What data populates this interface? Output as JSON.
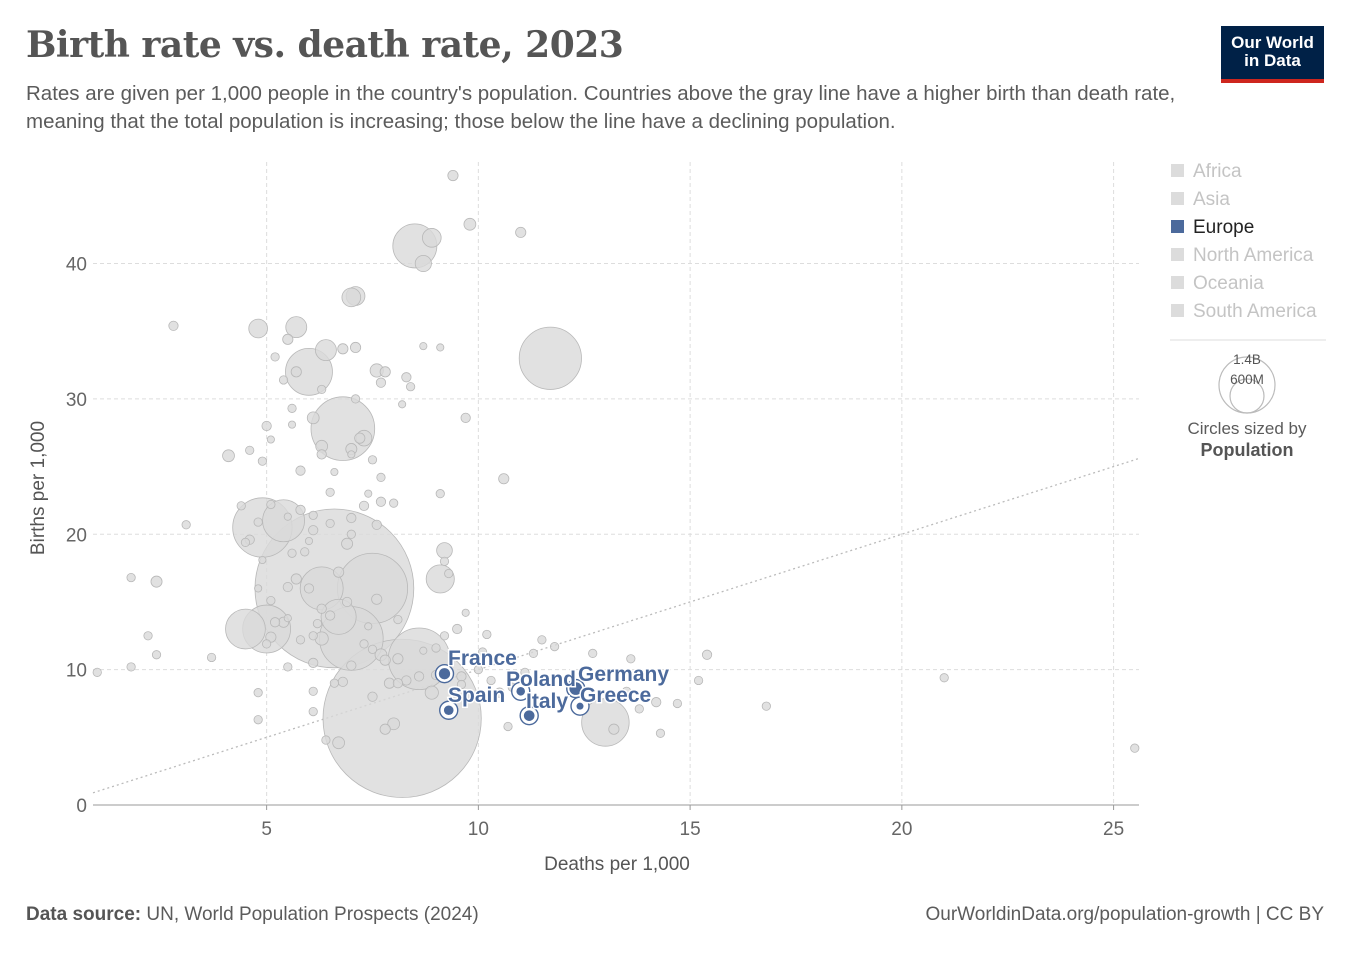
{
  "header": {
    "title": "Birth rate vs. death rate, 2023",
    "subtitle": "Rates are given per 1,000 people in the country's population. Countries above the gray line have a higher birth than death rate, meaning that the total population is increasing; those below the line have a declining population.",
    "logo_line1": "Our World",
    "logo_line2": "in Data"
  },
  "footer": {
    "source_label": "Data source:",
    "source_text": "UN, World Population Prospects (2024)",
    "url": "OurWorldinData.org/population-growth | CC BY"
  },
  "colors": {
    "europe": "#4c6a9c",
    "muted": "#d9d9d9",
    "muted_stroke": "#b8b8b8",
    "grid": "#dddddd",
    "parity_line": "#bbbbbb"
  },
  "chart_data": {
    "type": "scatter",
    "xlabel": "Deaths per 1,000",
    "ylabel": "Births per 1,000",
    "xlim": [
      0.9,
      25.6
    ],
    "ylim": [
      0,
      47.5
    ],
    "x_ticks": [
      5,
      10,
      15,
      20,
      25
    ],
    "y_ticks": [
      0,
      10,
      20,
      30,
      40
    ],
    "grid": true,
    "reference_line": {
      "from": [
        0.9,
        0.9
      ],
      "to": [
        25.6,
        25.6
      ],
      "style": "dotted"
    },
    "legend": {
      "position": "right",
      "entries": [
        {
          "name": "Africa",
          "active": false
        },
        {
          "name": "Asia",
          "active": false
        },
        {
          "name": "Europe",
          "active": true
        },
        {
          "name": "North America",
          "active": false
        },
        {
          "name": "Oceania",
          "active": false
        },
        {
          "name": "South America",
          "active": false
        }
      ]
    },
    "size_legend": {
      "large": "1.4B",
      "small": "600M",
      "caption": "Circles sized by",
      "variable": "Population"
    },
    "highlighted": [
      {
        "name": "France",
        "x": 9.2,
        "y": 9.7,
        "pop": 66
      },
      {
        "name": "Spain",
        "x": 9.3,
        "y": 7.0,
        "pop": 48
      },
      {
        "name": "Poland",
        "x": 11.0,
        "y": 8.4,
        "pop": 38
      },
      {
        "name": "Italy",
        "x": 11.2,
        "y": 6.6,
        "pop": 59
      },
      {
        "name": "Germany",
        "x": 12.3,
        "y": 8.6,
        "pop": 84
      },
      {
        "name": "Greece",
        "x": 12.4,
        "y": 7.3,
        "pop": 10
      }
    ],
    "other_points": [
      [
        6.6,
        16,
        1430
      ],
      [
        8.2,
        6.4,
        1420
      ],
      [
        7.5,
        16,
        280
      ],
      [
        7,
        12.3,
        230
      ],
      [
        6.8,
        27.8,
        230
      ],
      [
        11.7,
        33,
        220
      ],
      [
        8.6,
        10.8,
        215
      ],
      [
        4.9,
        20.5,
        200
      ],
      [
        13.0,
        6.1,
        128
      ],
      [
        6.0,
        32,
        125
      ],
      [
        8.5,
        41.3,
        110
      ],
      [
        5.4,
        21,
        100
      ],
      [
        5.7,
        35.3,
        25
      ],
      [
        6.4,
        33.6,
        25
      ],
      [
        5,
        13,
        130
      ],
      [
        6.3,
        16,
        105
      ],
      [
        4.5,
        13,
        90
      ],
      [
        6.7,
        13.9,
        70
      ],
      [
        4.8,
        35.2,
        20
      ],
      [
        9.1,
        16.7,
        45
      ],
      [
        9.4,
        46.5,
        6
      ],
      [
        9.8,
        42.9,
        8
      ],
      [
        11,
        42.3,
        6
      ],
      [
        8.7,
        40,
        15
      ],
      [
        8.9,
        41.9,
        20
      ],
      [
        7.1,
        37.6,
        20
      ],
      [
        7.0,
        37.5,
        20
      ],
      [
        2.8,
        35.4,
        5
      ],
      [
        5.5,
        34.4,
        6
      ],
      [
        7.1,
        33.8,
        6
      ],
      [
        6.8,
        33.7,
        6
      ],
      [
        5.2,
        33.1,
        4
      ],
      [
        8.7,
        33.9,
        3
      ],
      [
        9.1,
        33.8,
        3
      ],
      [
        5.7,
        32.0,
        6
      ],
      [
        7.6,
        32.1,
        10
      ],
      [
        7.8,
        32,
        6
      ],
      [
        8.3,
        31.6,
        5
      ],
      [
        5.4,
        31.4,
        4
      ],
      [
        7.7,
        31.2,
        5
      ],
      [
        8.4,
        30.9,
        4
      ],
      [
        6.3,
        30.7,
        4
      ],
      [
        7.1,
        30.0,
        4
      ],
      [
        5.6,
        29.3,
        4
      ],
      [
        8.2,
        29.6,
        3
      ],
      [
        9.7,
        28.6,
        5
      ],
      [
        6.1,
        28.6,
        8
      ],
      [
        5.0,
        28.0,
        5
      ],
      [
        5.6,
        28.1,
        3
      ],
      [
        7.3,
        27.1,
        14
      ],
      [
        7.2,
        27.1,
        6
      ],
      [
        5.1,
        27.0,
        3
      ],
      [
        7.0,
        26.3,
        7
      ],
      [
        6.3,
        26.5,
        8
      ],
      [
        4.6,
        26.2,
        4
      ],
      [
        4.1,
        25.8,
        8
      ],
      [
        7.5,
        25.5,
        4
      ],
      [
        4.9,
        25.4,
        4
      ],
      [
        6.3,
        25.9,
        5
      ],
      [
        7,
        25.9,
        3
      ],
      [
        5.8,
        24.7,
        5
      ],
      [
        6.6,
        24.6,
        3
      ],
      [
        7.7,
        24.2,
        4
      ],
      [
        10.6,
        24.1,
        6
      ],
      [
        6.5,
        23.1,
        4
      ],
      [
        7.4,
        23.0,
        3
      ],
      [
        9.1,
        23.0,
        4
      ],
      [
        7.3,
        22.1,
        5
      ],
      [
        7.7,
        22.4,
        5
      ],
      [
        8.0,
        22.3,
        4
      ],
      [
        4.4,
        22.1,
        4
      ],
      [
        5.1,
        22.2,
        4
      ],
      [
        5.8,
        21.8,
        5
      ],
      [
        6.1,
        21.4,
        4
      ],
      [
        7.0,
        21.2,
        5
      ],
      [
        5.5,
        21.3,
        3
      ],
      [
        3.1,
        20.7,
        4
      ],
      [
        4.8,
        20.9,
        4
      ],
      [
        6.5,
        20.8,
        4
      ],
      [
        7.6,
        20.7,
        5
      ],
      [
        6.1,
        20.3,
        5
      ],
      [
        7.0,
        20.0,
        4
      ],
      [
        4.6,
        19.6,
        5
      ],
      [
        4.5,
        19.4,
        4
      ],
      [
        6.0,
        19.5,
        3
      ],
      [
        6.9,
        19.3,
        7
      ],
      [
        9.2,
        18.8,
        14
      ],
      [
        5.6,
        18.6,
        4
      ],
      [
        5.9,
        18.7,
        4
      ],
      [
        4.9,
        18.1,
        3
      ],
      [
        9.2,
        18.0,
        4
      ],
      [
        6.7,
        17.2,
        6
      ],
      [
        1.8,
        16.8,
        4
      ],
      [
        2.4,
        16.5,
        7
      ],
      [
        5.7,
        16.7,
        6
      ],
      [
        9.3,
        17.1,
        4
      ],
      [
        4.8,
        16.0,
        3
      ],
      [
        5.5,
        16.1,
        5
      ],
      [
        6.0,
        16.0,
        5
      ],
      [
        7.6,
        15.2,
        6
      ],
      [
        5.1,
        15.1,
        4
      ],
      [
        6.9,
        15.0,
        5
      ],
      [
        6.3,
        14.5,
        5
      ],
      [
        6.5,
        14.0,
        5
      ],
      [
        5.4,
        13.5,
        6
      ],
      [
        5.2,
        13.5,
        5
      ],
      [
        8.1,
        13.7,
        4
      ],
      [
        9.7,
        14.2,
        3
      ],
      [
        5.5,
        13.8,
        3
      ],
      [
        6.2,
        13.4,
        4
      ],
      [
        7.4,
        13.2,
        3
      ],
      [
        9.5,
        13.0,
        5
      ],
      [
        6.1,
        12.5,
        4
      ],
      [
        5.1,
        12.4,
        6
      ],
      [
        2.2,
        12.5,
        4
      ],
      [
        6.3,
        12.3,
        10
      ],
      [
        5.8,
        12.2,
        4
      ],
      [
        9.2,
        12.5,
        4
      ],
      [
        10.2,
        12.6,
        4
      ],
      [
        11.5,
        12.2,
        4
      ],
      [
        9.0,
        11.6,
        4
      ],
      [
        11.8,
        11.7,
        4
      ],
      [
        5.0,
        11.9,
        4
      ],
      [
        7.3,
        11.9,
        4
      ],
      [
        7.5,
        11.5,
        4
      ],
      [
        8.7,
        11.4,
        3
      ],
      [
        10.1,
        11.3,
        4
      ],
      [
        11.3,
        11.2,
        4
      ],
      [
        12.7,
        11.2,
        4
      ],
      [
        15.4,
        11.1,
        5
      ],
      [
        13.6,
        10.8,
        4
      ],
      [
        2.4,
        11.1,
        4
      ],
      [
        3.7,
        10.9,
        4
      ],
      [
        7.7,
        11.1,
        8
      ],
      [
        8.1,
        10.8,
        6
      ],
      [
        6.1,
        10.5,
        5
      ],
      [
        7.0,
        10.3,
        5
      ],
      [
        7.8,
        10.7,
        6
      ],
      [
        5.5,
        10.2,
        4
      ],
      [
        1.8,
        10.2,
        4
      ],
      [
        10.0,
        10.0,
        4
      ],
      [
        11.1,
        9.8,
        4
      ],
      [
        8.6,
        9.5,
        5
      ],
      [
        9.0,
        9.6,
        5
      ],
      [
        9.6,
        9.5,
        5
      ],
      [
        1.0,
        9.8,
        4
      ],
      [
        8.3,
        9.2,
        5
      ],
      [
        10.3,
        9.2,
        4
      ],
      [
        7.9,
        9.0,
        6
      ],
      [
        8.1,
        9.0,
        5
      ],
      [
        9.6,
        8.9,
        4
      ],
      [
        10.8,
        8.7,
        4
      ],
      [
        15.2,
        9.2,
        4
      ],
      [
        21,
        9.4,
        4
      ],
      [
        6.6,
        9.0,
        4
      ],
      [
        6.8,
        9.1,
        5
      ],
      [
        8.9,
        8.3,
        10
      ],
      [
        10.5,
        8.3,
        5
      ],
      [
        13.5,
        8.4,
        4
      ],
      [
        7.5,
        8.0,
        5
      ],
      [
        6.1,
        8.4,
        4
      ],
      [
        4.8,
        8.3,
        4
      ],
      [
        14.2,
        7.6,
        5
      ],
      [
        14.7,
        7.5,
        4
      ],
      [
        16.8,
        7.3,
        4
      ],
      [
        13.8,
        7.1,
        4
      ],
      [
        6.1,
        6.9,
        4
      ],
      [
        10.7,
        5.8,
        4
      ],
      [
        13.2,
        5.6,
        6
      ],
      [
        14.3,
        5.3,
        4
      ],
      [
        4.8,
        6.3,
        4
      ],
      [
        25.5,
        4.2,
        4
      ],
      [
        6.4,
        4.8,
        4
      ],
      [
        6.7,
        4.6,
        8
      ],
      [
        8.0,
        6.0,
        8
      ],
      [
        7.8,
        5.6,
        6
      ]
    ]
  }
}
